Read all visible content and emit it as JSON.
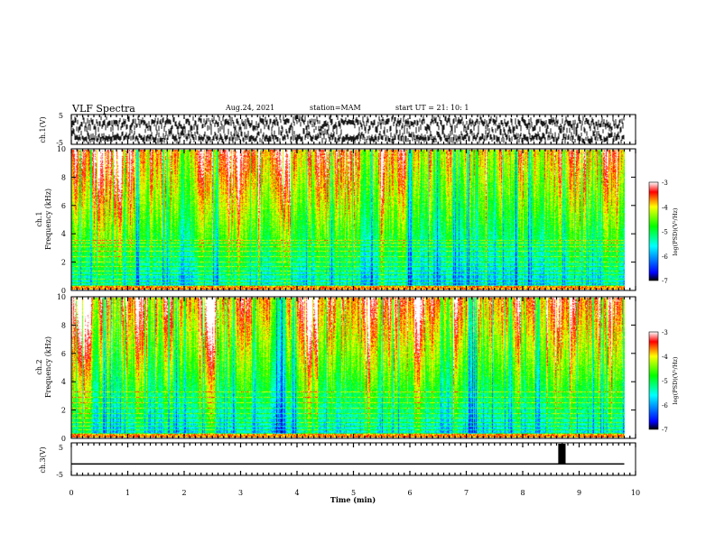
{
  "header": {
    "title": "VLF Spectra",
    "date": "Aug.24, 2021",
    "station": "station=MAM",
    "start": "start UT =   21: 10: 1"
  },
  "chart_data": [
    {
      "type": "line",
      "panel": "ch1-waveform",
      "ylabel": "ch.1(V)",
      "ylim": [
        -5,
        5
      ],
      "yticks": [
        "5",
        "-5"
      ],
      "xlim": [
        0,
        10
      ]
    },
    {
      "type": "heatmap",
      "panel": "ch1-spectrogram",
      "ylabel_channel": "ch.1",
      "ylabel": "Frequency (kHz)",
      "ylim": [
        0,
        10
      ],
      "yticks": [
        "0",
        "2",
        "4",
        "6",
        "8",
        "10"
      ],
      "xlim": [
        0,
        10
      ],
      "data_extent_min": 9.8,
      "colorbar": {
        "label": "log(PSD)(V²/Hz)",
        "range": [
          -7,
          -3
        ],
        "ticks": [
          "-3",
          "-4",
          "-5",
          "-6",
          "-7"
        ]
      }
    },
    {
      "type": "heatmap",
      "panel": "ch2-spectrogram",
      "ylabel_channel": "ch.2",
      "ylabel": "Frequency (kHz)",
      "ylim": [
        0,
        10
      ],
      "yticks": [
        "0",
        "2",
        "4",
        "6",
        "8",
        "10"
      ],
      "xlim": [
        0,
        10
      ],
      "data_extent_min": 9.8,
      "colorbar": {
        "label": "log(PSD)(V²/Hz)",
        "range": [
          -7,
          -3
        ],
        "ticks": [
          "-3",
          "-4",
          "-5",
          "-6",
          "-7"
        ]
      }
    },
    {
      "type": "line",
      "panel": "ch3-waveform",
      "ylabel": "ch.3(V)",
      "ylim": [
        -5,
        5
      ],
      "yticks": [
        "5",
        "-5"
      ],
      "xlim": [
        0,
        10
      ],
      "baseline_v": -1.5,
      "pulse": {
        "start_min": 8.63,
        "end_min": 8.76,
        "top_v": 5
      },
      "xlabel": "Time (min)",
      "xticks": [
        "0",
        "1",
        "2",
        "3",
        "4",
        "5",
        "6",
        "7",
        "8",
        "9",
        "10"
      ]
    }
  ]
}
